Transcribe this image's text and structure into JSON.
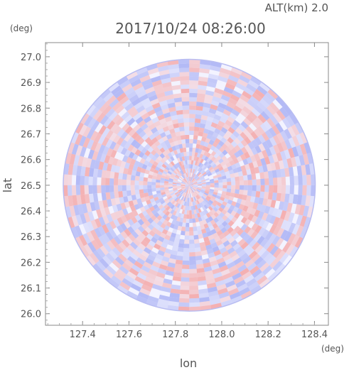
{
  "header": {
    "altitude_label": "ALT(km) 2.0",
    "timestamp": "2017/10/24 08:26:00"
  },
  "chart_data": {
    "type": "heatmap",
    "title": "2017/10/24 08:26:00",
    "subtitle": "ALT(km) 2.0",
    "xlabel": "lon",
    "ylabel": "lat",
    "x_unit": "(deg)",
    "y_unit": "(deg)",
    "xlim": [
      127.24,
      128.46
    ],
    "ylim": [
      25.955,
      27.055
    ],
    "x_ticks": [
      127.4,
      127.6,
      127.8,
      128.0,
      128.2,
      128.4
    ],
    "x_tick_labels": [
      "127.4",
      "127.6",
      "127.8",
      "128.0",
      "128.2",
      "128.4"
    ],
    "y_ticks": [
      26.0,
      26.1,
      26.2,
      26.3,
      26.4,
      26.5,
      26.6,
      26.7,
      26.8,
      26.9,
      27.0
    ],
    "y_tick_labels": [
      "26.0",
      "26.1",
      "26.2",
      "26.3",
      "26.4",
      "26.5",
      "26.6",
      "26.7",
      "26.8",
      "26.9",
      "27.0"
    ],
    "radar_center": [
      127.86,
      26.5
    ],
    "radar_radius_deg_lat": 0.49,
    "colors": {
      "positive": "#f4a3a3",
      "negative": "#a7aff4",
      "neutral": "#f3f3ff"
    }
  }
}
